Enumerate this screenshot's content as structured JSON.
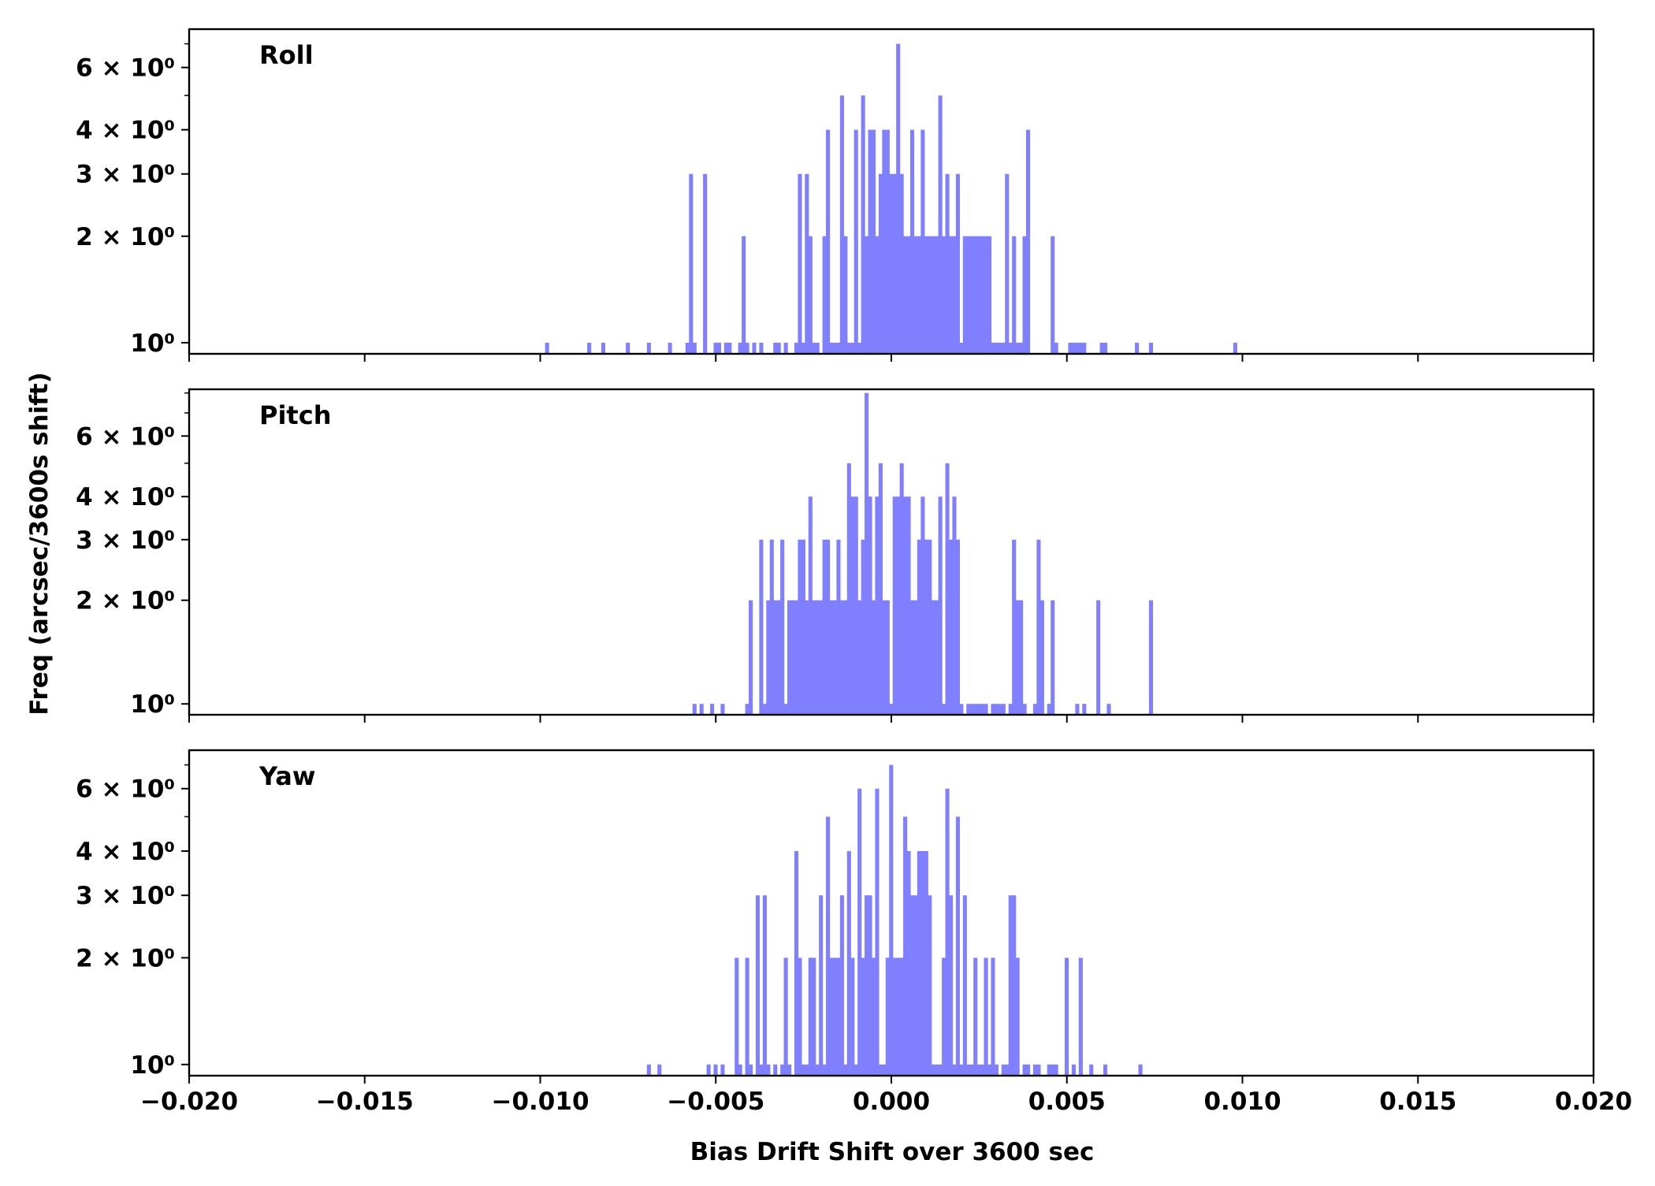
{
  "chart_data": {
    "type": "bar",
    "xlabel": "Bias Drift Shift over 3600 sec",
    "ylabel": "Freq (arcsec/3600s shift)",
    "xlim": [
      -0.02,
      0.02
    ],
    "x_ticks": [
      -0.02,
      -0.015,
      -0.01,
      -0.005,
      0.0,
      0.005,
      0.01,
      0.015,
      0.02
    ],
    "x_tick_labels": [
      "−0.020",
      "−0.015",
      "−0.010",
      "−0.005",
      "0.000",
      "0.005",
      "0.010",
      "0.015",
      "0.020"
    ],
    "y_scale": "log",
    "bar_color": "#8080ff",
    "bin_width": 0.000125,
    "panels": [
      {
        "title": "Roll",
        "ylim": [
          0.93,
          7.7
        ],
        "y_ticks": [
          {
            "value": 1,
            "label": "10⁰"
          },
          {
            "value": 2,
            "label": "2 × 10⁰"
          },
          {
            "value": 3,
            "label": "3 × 10⁰"
          },
          {
            "value": 4,
            "label": "4 × 10⁰"
          },
          {
            "value": 6,
            "label": "6 × 10⁰"
          }
        ],
        "bins": [
          [
            -0.0098,
            1
          ],
          [
            -0.0086,
            1
          ],
          [
            -0.0082,
            1
          ],
          [
            -0.0075,
            1
          ],
          [
            -0.0069,
            1
          ],
          [
            -0.0063,
            1
          ],
          [
            -0.0058,
            1
          ],
          [
            -0.0057,
            3
          ],
          [
            -0.0056,
            1
          ],
          [
            -0.0053,
            3
          ],
          [
            -0.005,
            1
          ],
          [
            -0.0049,
            1
          ],
          [
            -0.0047,
            1
          ],
          [
            -0.0046,
            1
          ],
          [
            -0.0043,
            1
          ],
          [
            -0.0042,
            2
          ],
          [
            -0.0041,
            1
          ],
          [
            -0.0039,
            1
          ],
          [
            -0.0037,
            1
          ],
          [
            -0.0033,
            1
          ],
          [
            -0.0032,
            1
          ],
          [
            -0.003,
            1
          ],
          [
            -0.0027,
            1
          ],
          [
            -0.0026,
            3
          ],
          [
            -0.0025,
            1
          ],
          [
            -0.0024,
            3
          ],
          [
            -0.0023,
            2
          ],
          [
            -0.0022,
            1
          ],
          [
            -0.0021,
            1
          ],
          [
            -0.0019,
            2
          ],
          [
            -0.0018,
            4
          ],
          [
            -0.0017,
            1
          ],
          [
            -0.0016,
            1
          ],
          [
            -0.0015,
            1
          ],
          [
            -0.0014,
            5
          ],
          [
            -0.0013,
            2
          ],
          [
            -0.0012,
            1
          ],
          [
            -0.0011,
            1
          ],
          [
            -0.001,
            4
          ],
          [
            -0.0009,
            1
          ],
          [
            -0.0008,
            5
          ],
          [
            -0.0007,
            2
          ],
          [
            -0.0006,
            4
          ],
          [
            -0.0005,
            4
          ],
          [
            -0.0004,
            2
          ],
          [
            -0.0003,
            3
          ],
          [
            -0.0002,
            4
          ],
          [
            -0.0001,
            4
          ],
          [
            0.0,
            3
          ],
          [
            0.0001,
            3
          ],
          [
            0.0002,
            7
          ],
          [
            0.0003,
            3
          ],
          [
            0.0004,
            2
          ],
          [
            0.0005,
            2
          ],
          [
            0.0006,
            4
          ],
          [
            0.0007,
            2
          ],
          [
            0.0008,
            2
          ],
          [
            0.0009,
            4
          ],
          [
            0.001,
            2
          ],
          [
            0.0011,
            2
          ],
          [
            0.0012,
            2
          ],
          [
            0.0013,
            2
          ],
          [
            0.0014,
            5
          ],
          [
            0.0015,
            2
          ],
          [
            0.0016,
            3
          ],
          [
            0.0017,
            2
          ],
          [
            0.0018,
            2
          ],
          [
            0.0019,
            3
          ],
          [
            0.002,
            1
          ],
          [
            0.0021,
            2
          ],
          [
            0.0022,
            2
          ],
          [
            0.0023,
            2
          ],
          [
            0.0024,
            2
          ],
          [
            0.0025,
            2
          ],
          [
            0.0026,
            2
          ],
          [
            0.0027,
            2
          ],
          [
            0.0028,
            2
          ],
          [
            0.0029,
            1
          ],
          [
            0.003,
            1
          ],
          [
            0.0031,
            1
          ],
          [
            0.0032,
            1
          ],
          [
            0.0033,
            3
          ],
          [
            0.0034,
            1
          ],
          [
            0.0035,
            2
          ],
          [
            0.0036,
            1
          ],
          [
            0.0037,
            1
          ],
          [
            0.0038,
            2
          ],
          [
            0.0039,
            4
          ],
          [
            0.0046,
            2
          ],
          [
            0.0047,
            1
          ],
          [
            0.0051,
            1
          ],
          [
            0.0052,
            1
          ],
          [
            0.0053,
            1
          ],
          [
            0.0054,
            1
          ],
          [
            0.0055,
            1
          ],
          [
            0.006,
            1
          ],
          [
            0.0061,
            1
          ],
          [
            0.007,
            1
          ],
          [
            0.0074,
            1
          ],
          [
            0.0098,
            1
          ]
        ]
      },
      {
        "title": "Pitch",
        "ylim": [
          0.93,
          8.2
        ],
        "y_ticks": [
          {
            "value": 1,
            "label": "10⁰"
          },
          {
            "value": 2,
            "label": "2 × 10⁰"
          },
          {
            "value": 3,
            "label": "3 × 10⁰"
          },
          {
            "value": 4,
            "label": "4 × 10⁰"
          },
          {
            "value": 6,
            "label": "6 × 10⁰"
          }
        ],
        "bins": [
          [
            -0.0056,
            1
          ],
          [
            -0.0054,
            1
          ],
          [
            -0.0051,
            1
          ],
          [
            -0.0048,
            1
          ],
          [
            -0.0041,
            1
          ],
          [
            -0.004,
            2
          ],
          [
            -0.0037,
            3
          ],
          [
            -0.0036,
            1
          ],
          [
            -0.0035,
            2
          ],
          [
            -0.0034,
            3
          ],
          [
            -0.0033,
            2
          ],
          [
            -0.0032,
            2
          ],
          [
            -0.0031,
            3
          ],
          [
            -0.003,
            1
          ],
          [
            -0.0029,
            2
          ],
          [
            -0.0028,
            2
          ],
          [
            -0.0027,
            2
          ],
          [
            -0.0026,
            3
          ],
          [
            -0.0025,
            3
          ],
          [
            -0.0024,
            2
          ],
          [
            -0.0023,
            4
          ],
          [
            -0.0022,
            2
          ],
          [
            -0.0021,
            2
          ],
          [
            -0.002,
            2
          ],
          [
            -0.0019,
            3
          ],
          [
            -0.0018,
            3
          ],
          [
            -0.0017,
            2
          ],
          [
            -0.0016,
            2
          ],
          [
            -0.0015,
            3
          ],
          [
            -0.0014,
            2
          ],
          [
            -0.0013,
            2
          ],
          [
            -0.0012,
            5
          ],
          [
            -0.0011,
            4
          ],
          [
            -0.001,
            4
          ],
          [
            -0.0009,
            2
          ],
          [
            -0.0008,
            3
          ],
          [
            -0.0007,
            8
          ],
          [
            -0.0006,
            4
          ],
          [
            -0.0005,
            2
          ],
          [
            -0.0004,
            4
          ],
          [
            -0.0003,
            5
          ],
          [
            -0.0002,
            2
          ],
          [
            -0.0001,
            2
          ],
          [
            0.0,
            1
          ],
          [
            0.0001,
            4
          ],
          [
            0.0002,
            4
          ],
          [
            0.0003,
            5
          ],
          [
            0.0004,
            4
          ],
          [
            0.0005,
            4
          ],
          [
            0.0006,
            2
          ],
          [
            0.0007,
            2
          ],
          [
            0.0008,
            3
          ],
          [
            0.0009,
            4
          ],
          [
            0.001,
            3
          ],
          [
            0.0011,
            3
          ],
          [
            0.0012,
            2
          ],
          [
            0.0013,
            2
          ],
          [
            0.0014,
            4
          ],
          [
            0.0015,
            1
          ],
          [
            0.0016,
            5
          ],
          [
            0.0017,
            3
          ],
          [
            0.0018,
            4
          ],
          [
            0.0019,
            3
          ],
          [
            0.002,
            1
          ],
          [
            0.0022,
            1
          ],
          [
            0.0023,
            1
          ],
          [
            0.0024,
            1
          ],
          [
            0.0025,
            1
          ],
          [
            0.0026,
            1
          ],
          [
            0.0027,
            1
          ],
          [
            0.0029,
            1
          ],
          [
            0.003,
            1
          ],
          [
            0.0031,
            1
          ],
          [
            0.0032,
            1
          ],
          [
            0.0034,
            1
          ],
          [
            0.0035,
            3
          ],
          [
            0.0036,
            2
          ],
          [
            0.0037,
            2
          ],
          [
            0.0038,
            1
          ],
          [
            0.0041,
            1
          ],
          [
            0.0042,
            3
          ],
          [
            0.0043,
            2
          ],
          [
            0.0045,
            1
          ],
          [
            0.0046,
            2
          ],
          [
            0.0053,
            1
          ],
          [
            0.0055,
            1
          ],
          [
            0.0059,
            2
          ],
          [
            0.0062,
            1
          ],
          [
            0.0074,
            2
          ]
        ]
      },
      {
        "title": "Yaw",
        "ylim": [
          0.93,
          7.7
        ],
        "y_ticks": [
          {
            "value": 1,
            "label": "10⁰"
          },
          {
            "value": 2,
            "label": "2 × 10⁰"
          },
          {
            "value": 3,
            "label": "3 × 10⁰"
          },
          {
            "value": 4,
            "label": "4 × 10⁰"
          },
          {
            "value": 6,
            "label": "6 × 10⁰"
          }
        ],
        "bins": [
          [
            -0.0069,
            1
          ],
          [
            -0.0066,
            1
          ],
          [
            -0.0052,
            1
          ],
          [
            -0.005,
            1
          ],
          [
            -0.0048,
            1
          ],
          [
            -0.0044,
            2
          ],
          [
            -0.0043,
            1
          ],
          [
            -0.0041,
            2
          ],
          [
            -0.004,
            1
          ],
          [
            -0.0038,
            3
          ],
          [
            -0.0037,
            1
          ],
          [
            -0.0036,
            3
          ],
          [
            -0.0035,
            1
          ],
          [
            -0.0033,
            1
          ],
          [
            -0.0031,
            1
          ],
          [
            -0.003,
            2
          ],
          [
            -0.0029,
            1
          ],
          [
            -0.0027,
            4
          ],
          [
            -0.0026,
            2
          ],
          [
            -0.0025,
            1
          ],
          [
            -0.0024,
            1
          ],
          [
            -0.0023,
            2
          ],
          [
            -0.0022,
            2
          ],
          [
            -0.0021,
            1
          ],
          [
            -0.002,
            3
          ],
          [
            -0.0019,
            1
          ],
          [
            -0.0018,
            5
          ],
          [
            -0.0017,
            2
          ],
          [
            -0.0016,
            2
          ],
          [
            -0.0015,
            2
          ],
          [
            -0.0014,
            3
          ],
          [
            -0.0013,
            1
          ],
          [
            -0.0012,
            4
          ],
          [
            -0.0011,
            2
          ],
          [
            -0.001,
            1
          ],
          [
            -0.0009,
            6
          ],
          [
            -0.0008,
            2
          ],
          [
            -0.0007,
            3
          ],
          [
            -0.0006,
            3
          ],
          [
            -0.0005,
            2
          ],
          [
            -0.0004,
            6
          ],
          [
            -0.0003,
            1
          ],
          [
            -0.0002,
            1
          ],
          [
            -0.0001,
            2
          ],
          [
            0.0,
            7
          ],
          [
            0.0001,
            2
          ],
          [
            0.0002,
            2
          ],
          [
            0.0003,
            2
          ],
          [
            0.0004,
            5
          ],
          [
            0.0005,
            4
          ],
          [
            0.0006,
            3
          ],
          [
            0.0007,
            3
          ],
          [
            0.0008,
            4
          ],
          [
            0.0009,
            4
          ],
          [
            0.001,
            4
          ],
          [
            0.0011,
            3
          ],
          [
            0.0012,
            1
          ],
          [
            0.0013,
            1
          ],
          [
            0.0014,
            1
          ],
          [
            0.0015,
            2
          ],
          [
            0.0016,
            6
          ],
          [
            0.0017,
            3
          ],
          [
            0.0018,
            1
          ],
          [
            0.0019,
            5
          ],
          [
            0.002,
            1
          ],
          [
            0.0021,
            3
          ],
          [
            0.0022,
            1
          ],
          [
            0.0023,
            1
          ],
          [
            0.0024,
            2
          ],
          [
            0.0025,
            1
          ],
          [
            0.0026,
            1
          ],
          [
            0.0027,
            2
          ],
          [
            0.0028,
            1
          ],
          [
            0.0029,
            2
          ],
          [
            0.003,
            1
          ],
          [
            0.0032,
            1
          ],
          [
            0.0033,
            1
          ],
          [
            0.0034,
            3
          ],
          [
            0.0035,
            3
          ],
          [
            0.0036,
            2
          ],
          [
            0.0038,
            1
          ],
          [
            0.0039,
            1
          ],
          [
            0.0041,
            1
          ],
          [
            0.0042,
            1
          ],
          [
            0.0045,
            1
          ],
          [
            0.0046,
            1
          ],
          [
            0.0047,
            1
          ],
          [
            0.005,
            2
          ],
          [
            0.0052,
            1
          ],
          [
            0.0054,
            2
          ],
          [
            0.0057,
            1
          ],
          [
            0.0061,
            1
          ],
          [
            0.0071,
            1
          ]
        ]
      }
    ]
  }
}
